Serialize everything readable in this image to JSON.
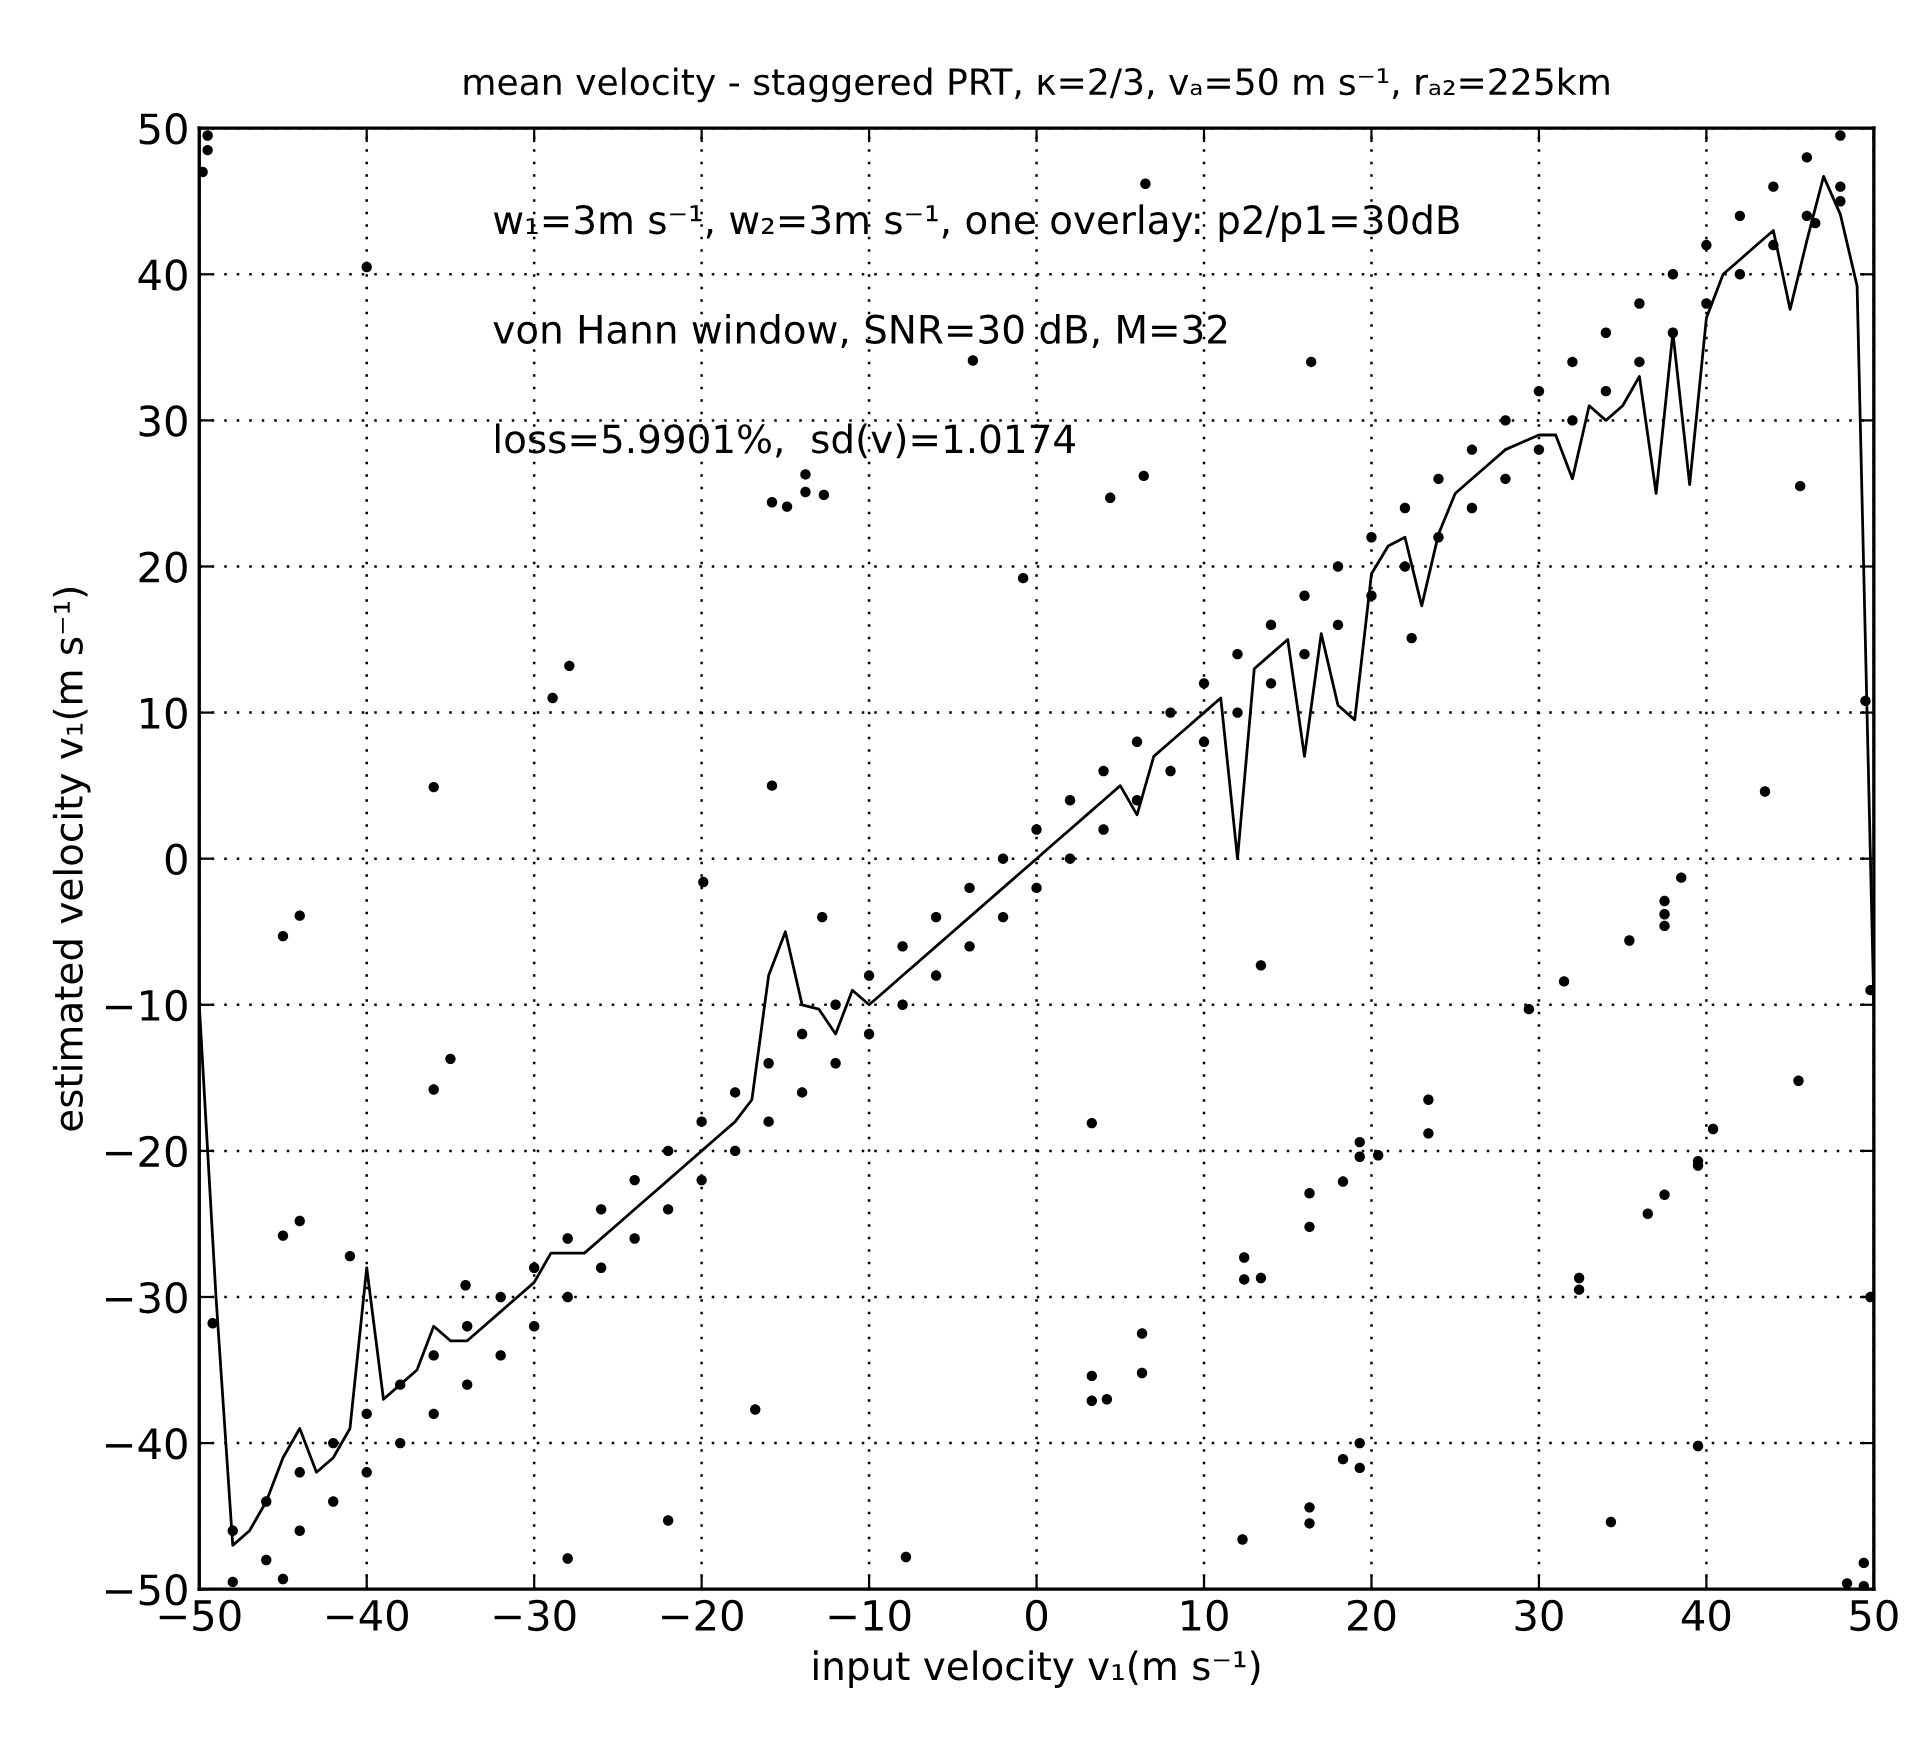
{
  "chart_data": {
    "type": "scatter",
    "title": "mean velocity - staggered PRT, κ=2/3, vₐ=50 m s⁻¹, rₐ₂=225km",
    "xlabel": "input velocity v₁(m s⁻¹)",
    "ylabel": "estimated velocity v₁(m s⁻¹)",
    "annotations": [
      "w₁=3m s⁻¹, w₂=3m s⁻¹, one overlay: p2/p1=30dB",
      "von Hann window, SNR=30 dB, M=32",
      "loss=5.9901%,  sd(v)=1.0174"
    ],
    "xlim": [
      -50,
      50
    ],
    "ylim": [
      -50,
      50
    ],
    "xticks": [
      -50,
      -40,
      -30,
      -20,
      -10,
      0,
      10,
      20,
      30,
      40,
      50
    ],
    "yticks": [
      -50,
      -40,
      -30,
      -20,
      -10,
      0,
      10,
      20,
      30,
      40,
      50
    ],
    "grid": true,
    "marker": "circle",
    "series": [
      {
        "color": "#000000",
        "x": [
          -48,
          -48,
          -46,
          -46,
          -44,
          -44,
          -42,
          -42,
          -40,
          -40,
          -38,
          -38,
          -36,
          -36,
          -34,
          -34,
          -32,
          -32,
          -30,
          -30,
          -28,
          -28,
          -26,
          -26,
          -24,
          -24,
          -22,
          -22,
          -20,
          -20,
          -18,
          -18,
          -16,
          -16,
          -14,
          -14,
          -12,
          -12,
          -10,
          -10,
          -8,
          -8,
          -6,
          -6,
          -4,
          -4,
          -2,
          -2,
          0,
          0,
          2,
          2,
          4,
          4,
          6,
          6,
          8,
          8,
          10,
          10,
          12,
          12,
          14,
          14,
          16,
          16,
          18,
          18,
          20,
          20,
          22,
          22,
          24,
          24,
          26,
          26,
          28,
          28,
          30,
          30,
          32,
          32,
          34,
          34,
          36,
          36,
          38,
          38,
          40,
          40,
          42,
          42,
          44,
          44,
          46,
          46,
          48,
          48
        ],
        "values": [
          -49.5,
          -46,
          -48,
          -44,
          -46,
          -42,
          -44,
          -40,
          -42,
          -38,
          -40,
          -36,
          -38,
          -34,
          -36,
          -32,
          -34,
          -30,
          -32,
          -28,
          -30,
          -26,
          -28,
          -24,
          -26,
          -22,
          -24,
          -20,
          -22,
          -18,
          -20,
          -16,
          -18,
          -14,
          -16,
          -12,
          -14,
          -10,
          -12,
          -8,
          -10,
          -6,
          -8,
          -4,
          -6,
          -2,
          -4,
          0,
          -2,
          2,
          0,
          4,
          2,
          6,
          4,
          8,
          6,
          10,
          8,
          12,
          10,
          14,
          12,
          16,
          14,
          18,
          16,
          20,
          18,
          22,
          20,
          24,
          22,
          26,
          24,
          28,
          26,
          30,
          28,
          32,
          30,
          34,
          32,
          36,
          34,
          38,
          36,
          40,
          38,
          42,
          40,
          44,
          42,
          46,
          44,
          48,
          46,
          49.5
        ]
      },
      {
        "color": "#000000",
        "x": [
          -49.5,
          -49.5,
          -49.8,
          -40,
          -15.8,
          -14.9,
          -13.8,
          -13.8,
          -12.7,
          -3.8,
          -0.8,
          -27.9,
          -28.9,
          -36,
          -15.8,
          -19.9,
          -12.8,
          -45,
          -44,
          6.5,
          16.4,
          4.4,
          6.4,
          22.4,
          45.6,
          43.5,
          38.5,
          37.5,
          37.5,
          37.5,
          35.4,
          -35,
          -36,
          -45,
          -44,
          -41,
          -34.1,
          -49.2,
          -16.8,
          -22,
          -28,
          -7.8,
          -45,
          13.4,
          3.3,
          29.4,
          31.5,
          45.5,
          40.4,
          39.5,
          39.5,
          37.5,
          36.5,
          23.4,
          23.4,
          19.3,
          19.3,
          20.4,
          18.3,
          16.3,
          16.3,
          12.4,
          12.4,
          13.4,
          6.3,
          6.3,
          3.3,
          3.3,
          4.2,
          32.4,
          32.4,
          39.5,
          19.3,
          18.3,
          19.3,
          16.3,
          16.3,
          12.3,
          34.3,
          48.4,
          49.4,
          49.4,
          49.5,
          49.8,
          49.8,
          48,
          46.5
        ],
        "values": [
          48.5,
          49.5,
          47,
          40.5,
          24.4,
          24.1,
          26.3,
          25.1,
          24.9,
          34.1,
          19.2,
          13.2,
          11,
          4.9,
          5,
          -1.6,
          -4,
          -5.3,
          -3.9,
          46.2,
          34,
          24.7,
          26.2,
          15.1,
          25.5,
          4.6,
          -1.3,
          -2.9,
          -3.8,
          -4.6,
          -5.6,
          -13.7,
          -15.8,
          -25.8,
          -24.8,
          -27.2,
          -29.2,
          -31.8,
          -37.7,
          -45.3,
          -47.9,
          -47.8,
          -49.3,
          -7.3,
          -18.1,
          -10.3,
          -8.4,
          -15.2,
          -18.5,
          -20.7,
          -21,
          -23,
          -24.3,
          -16.5,
          -18.8,
          -19.4,
          -20.4,
          -20.3,
          -22.1,
          -22.9,
          -25.2,
          -27.3,
          -28.8,
          -28.7,
          -32.5,
          -35.2,
          -35.4,
          -37.1,
          -37,
          -28.7,
          -29.5,
          -40.2,
          -40,
          -41.1,
          -41.7,
          -44.4,
          -45.5,
          -46.6,
          -45.4,
          -49.6,
          -48.2,
          -49.8,
          10.8,
          -9,
          -30,
          45,
          43.5
        ]
      },
      {
        "type": "line",
        "color": "#000000",
        "marker": "none",
        "line_style": "solid",
        "x": [
          -50,
          -49,
          -48,
          -47,
          -46,
          -45,
          -44,
          -43,
          -42,
          -41,
          -40,
          -39,
          -38,
          -37,
          -36,
          -35,
          -34,
          -33,
          -32,
          -31,
          -30,
          -29,
          -28,
          -27,
          -26,
          -25,
          -24,
          -23,
          -22,
          -21,
          -20,
          -19,
          -18,
          -17,
          -16,
          -15,
          -14,
          -13,
          -12,
          -11,
          -10,
          -9,
          -8,
          -7,
          -6,
          -5,
          -4,
          -3,
          -2,
          -1,
          0,
          1,
          2,
          3,
          4,
          5,
          6,
          7,
          8,
          9,
          10,
          11,
          12,
          13,
          14,
          15,
          16,
          17,
          18,
          19,
          20,
          21,
          22,
          23,
          24,
          25,
          26,
          27,
          28,
          29,
          30,
          31,
          32,
          33,
          34,
          35,
          36,
          37,
          38,
          39,
          40,
          41,
          42,
          43,
          44,
          45,
          46,
          47,
          48,
          49,
          50
        ],
        "values": [
          -10,
          -30,
          -47,
          -46,
          -44,
          -41,
          -39,
          -42,
          -41,
          -39,
          -28,
          -37,
          -36,
          -35,
          -32,
          -33,
          -33,
          -32,
          -31,
          -30,
          -29,
          -27,
          -27,
          -27,
          -26,
          -25,
          -24,
          -23,
          -22,
          -21,
          -20,
          -19,
          -18,
          -16.5,
          -8,
          -5,
          -10,
          -10.3,
          -12,
          -9,
          -10,
          -9,
          -8,
          -7,
          -6,
          -5,
          -4,
          -3,
          -2,
          -1,
          0,
          1,
          2,
          3,
          4,
          5,
          3,
          7,
          8,
          9,
          10,
          11,
          0,
          13,
          14,
          15,
          7,
          15.4,
          10.5,
          9.5,
          19.5,
          21.4,
          22,
          17.3,
          22.2,
          25,
          26,
          27,
          28,
          28.5,
          29,
          29,
          26,
          31,
          30,
          31,
          33,
          25,
          36,
          25.6,
          37,
          40,
          41,
          42,
          43,
          37.6,
          42.3,
          46.7,
          44.1,
          39.2,
          -10
        ]
      }
    ]
  }
}
